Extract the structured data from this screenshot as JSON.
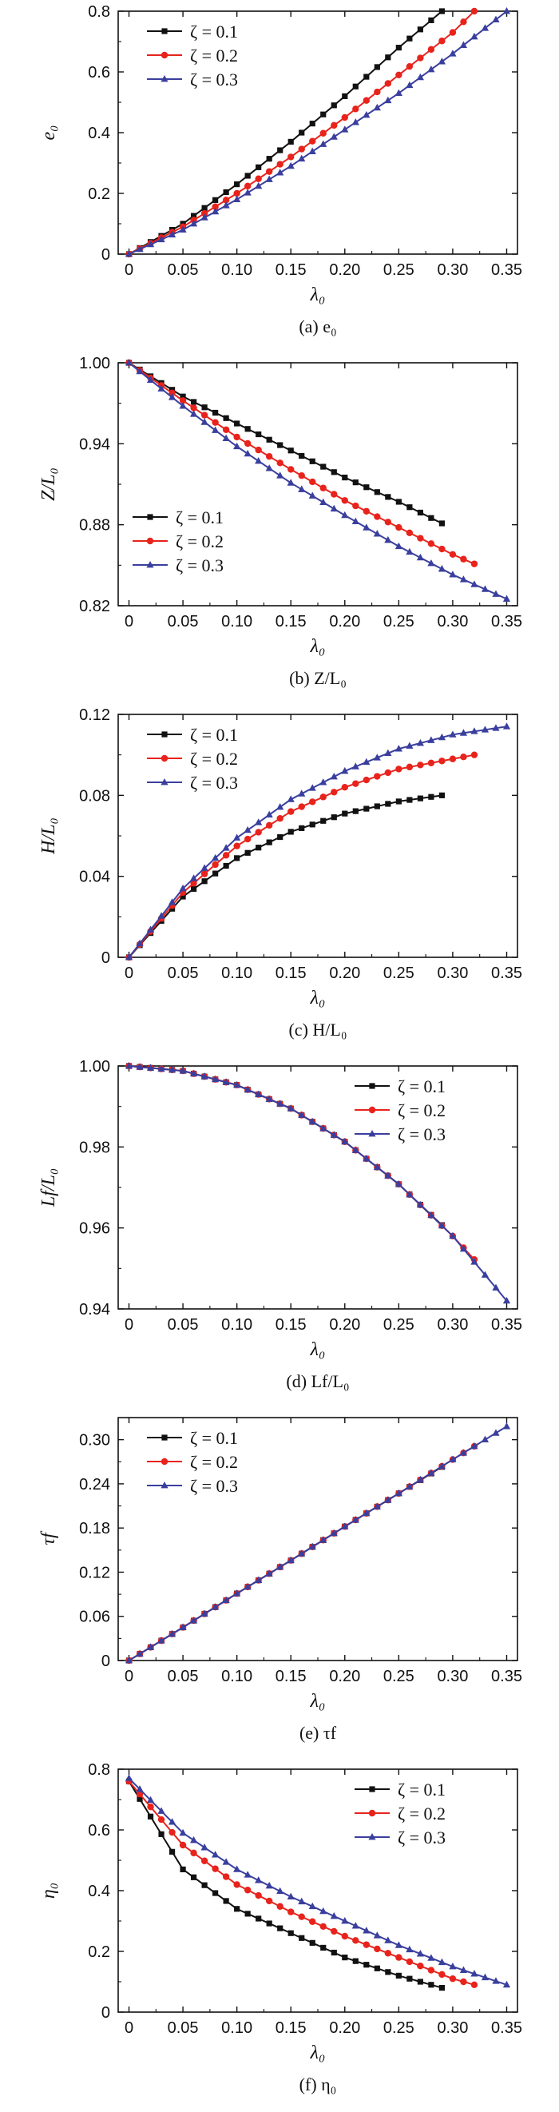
{
  "colors": {
    "s1": "#111111",
    "s2": "#e8231c",
    "s3": "#3a3f9e",
    "axis": "#111111"
  },
  "chart_data": [
    {
      "type": "line",
      "title": "",
      "caption": "(a) e₀",
      "ylabel": "e₀",
      "xlabel": "λ₀",
      "xlim": [
        -0.01,
        0.36
      ],
      "ylim": [
        0,
        0.8
      ],
      "xticks": [
        "0",
        "0.05",
        "0.10",
        "0.15",
        "0.20",
        "0.25",
        "0.30",
        "0.35"
      ],
      "xtick_values": [
        0,
        0.05,
        0.1,
        0.15,
        0.2,
        0.25,
        0.3,
        0.35
      ],
      "yticks": [
        "0",
        "0.2",
        "0.4",
        "0.6",
        "0.8"
      ],
      "ytick_values": [
        0,
        0.2,
        0.4,
        0.6,
        0.8
      ],
      "legend_position": "top-left",
      "series": [
        {
          "name": "ζ = 0.1",
          "marker": "square",
          "xmax": 0.29,
          "x": [
            0,
            0.05,
            0.1,
            0.15,
            0.2,
            0.25,
            0.29
          ],
          "y": [
            0,
            0.1,
            0.23,
            0.37,
            0.52,
            0.68,
            0.8
          ]
        },
        {
          "name": "ζ = 0.2",
          "marker": "circle",
          "xmax": 0.32,
          "x": [
            0,
            0.05,
            0.1,
            0.15,
            0.2,
            0.25,
            0.3,
            0.32
          ],
          "y": [
            0,
            0.09,
            0.2,
            0.32,
            0.45,
            0.59,
            0.73,
            0.8
          ]
        },
        {
          "name": "ζ = 0.3",
          "marker": "triangle",
          "xmax": 0.35,
          "x": [
            0,
            0.05,
            0.1,
            0.15,
            0.2,
            0.25,
            0.3,
            0.35
          ],
          "y": [
            0,
            0.08,
            0.18,
            0.29,
            0.41,
            0.53,
            0.66,
            0.8
          ]
        }
      ]
    },
    {
      "type": "line",
      "title": "",
      "caption": "(b) Z/L₀",
      "ylabel": "Z/L₀",
      "xlabel": "λ₀",
      "xlim": [
        -0.01,
        0.36
      ],
      "ylim": [
        0.82,
        1.0
      ],
      "xticks": [
        "0",
        "0.05",
        "0.10",
        "0.15",
        "0.20",
        "0.25",
        "0.30",
        "0.35"
      ],
      "xtick_values": [
        0,
        0.05,
        0.1,
        0.15,
        0.2,
        0.25,
        0.3,
        0.35
      ],
      "yticks": [
        "0.82",
        "0.88",
        "0.94",
        "1.00"
      ],
      "ytick_values": [
        0.82,
        0.88,
        0.94,
        1.0
      ],
      "legend_position": "bottom-left",
      "series": [
        {
          "name": "ζ = 0.1",
          "marker": "square",
          "xmax": 0.29,
          "x": [
            0,
            0.05,
            0.1,
            0.15,
            0.2,
            0.25,
            0.29
          ],
          "y": [
            1.0,
            0.975,
            0.955,
            0.935,
            0.915,
            0.897,
            0.881
          ]
        },
        {
          "name": "ζ = 0.2",
          "marker": "circle",
          "xmax": 0.32,
          "x": [
            0,
            0.05,
            0.1,
            0.15,
            0.2,
            0.25,
            0.3,
            0.32
          ],
          "y": [
            1.0,
            0.972,
            0.945,
            0.921,
            0.898,
            0.878,
            0.858,
            0.851
          ]
        },
        {
          "name": "ζ = 0.3",
          "marker": "triangle",
          "xmax": 0.35,
          "x": [
            0,
            0.05,
            0.1,
            0.15,
            0.2,
            0.25,
            0.3,
            0.35
          ],
          "y": [
            1.0,
            0.968,
            0.938,
            0.911,
            0.887,
            0.864,
            0.843,
            0.825
          ]
        }
      ]
    },
    {
      "type": "line",
      "title": "",
      "caption": "(c) H/L₀",
      "ylabel": "H/L₀",
      "xlabel": "λ₀",
      "xlim": [
        -0.01,
        0.36
      ],
      "ylim": [
        0,
        0.12
      ],
      "xticks": [
        "0",
        "0.05",
        "0.10",
        "0.15",
        "0.20",
        "0.25",
        "0.30",
        "0.35"
      ],
      "xtick_values": [
        0,
        0.05,
        0.1,
        0.15,
        0.2,
        0.25,
        0.3,
        0.35
      ],
      "yticks": [
        "0",
        "0.04",
        "0.08",
        "0.12"
      ],
      "ytick_values": [
        0,
        0.04,
        0.08,
        0.12
      ],
      "legend_position": "top-left",
      "series": [
        {
          "name": "ζ = 0.1",
          "marker": "square",
          "xmax": 0.29,
          "x": [
            0,
            0.05,
            0.1,
            0.15,
            0.2,
            0.25,
            0.29
          ],
          "y": [
            0,
            0.03,
            0.049,
            0.062,
            0.071,
            0.077,
            0.08
          ]
        },
        {
          "name": "ζ = 0.2",
          "marker": "circle",
          "xmax": 0.32,
          "x": [
            0,
            0.05,
            0.1,
            0.15,
            0.2,
            0.25,
            0.3,
            0.32
          ],
          "y": [
            0,
            0.032,
            0.055,
            0.072,
            0.084,
            0.093,
            0.098,
            0.1
          ]
        },
        {
          "name": "ζ = 0.3",
          "marker": "triangle",
          "xmax": 0.35,
          "x": [
            0,
            0.05,
            0.1,
            0.15,
            0.2,
            0.25,
            0.3,
            0.35
          ],
          "y": [
            0,
            0.034,
            0.059,
            0.078,
            0.092,
            0.103,
            0.11,
            0.114
          ]
        }
      ]
    },
    {
      "type": "line",
      "title": "",
      "caption": "(d) Lf/L₀",
      "ylabel": "Lf/L₀",
      "xlabel": "λ₀",
      "xlim": [
        -0.01,
        0.36
      ],
      "ylim": [
        0.94,
        1.0
      ],
      "xticks": [
        "0",
        "0.05",
        "0.10",
        "0.15",
        "0.20",
        "0.25",
        "0.30",
        "0.35"
      ],
      "xtick_values": [
        0,
        0.05,
        0.1,
        0.15,
        0.2,
        0.25,
        0.3,
        0.35
      ],
      "yticks": [
        "0.94",
        "0.96",
        "0.98",
        "1.00"
      ],
      "ytick_values": [
        0.94,
        0.96,
        0.98,
        1.0
      ],
      "legend_position": "top-right",
      "series": [
        {
          "name": "ζ = 0.1",
          "marker": "square",
          "xmax": 0.29,
          "x": [
            0,
            0.05,
            0.1,
            0.15,
            0.2,
            0.25,
            0.29
          ],
          "y": [
            1.0,
            0.9988,
            0.9953,
            0.9895,
            0.9813,
            0.9708,
            0.9607
          ]
        },
        {
          "name": "ζ = 0.2",
          "marker": "circle",
          "xmax": 0.32,
          "x": [
            0,
            0.05,
            0.1,
            0.15,
            0.2,
            0.25,
            0.3,
            0.32
          ],
          "y": [
            1.0,
            0.9988,
            0.9953,
            0.9895,
            0.9813,
            0.9708,
            0.958,
            0.9522
          ]
        },
        {
          "name": "ζ = 0.3",
          "marker": "triangle",
          "xmax": 0.35,
          "x": [
            0,
            0.05,
            0.1,
            0.15,
            0.2,
            0.25,
            0.3,
            0.35
          ],
          "y": [
            1.0,
            0.9988,
            0.9953,
            0.9895,
            0.9813,
            0.9708,
            0.958,
            0.942
          ]
        }
      ]
    },
    {
      "type": "line",
      "title": "",
      "caption": "(e) τf",
      "ylabel": "τf",
      "xlabel": "λ₀",
      "xlim": [
        -0.01,
        0.36
      ],
      "ylim": [
        0,
        0.33
      ],
      "xticks": [
        "0",
        "0.05",
        "0.10",
        "0.15",
        "0.20",
        "0.25",
        "0.30",
        "0.35"
      ],
      "xtick_values": [
        0,
        0.05,
        0.1,
        0.15,
        0.2,
        0.25,
        0.3,
        0.35
      ],
      "yticks": [
        "0",
        "0.06",
        "0.12",
        "0.18",
        "0.24",
        "0.30"
      ],
      "ytick_values": [
        0,
        0.06,
        0.12,
        0.18,
        0.24,
        0.3
      ],
      "legend_position": "top-left",
      "series": [
        {
          "name": "ζ = 0.1",
          "marker": "square",
          "xmax": 0.29,
          "x": [
            0,
            0.05,
            0.1,
            0.15,
            0.2,
            0.25,
            0.29
          ],
          "y": [
            0,
            0.045,
            0.091,
            0.136,
            0.182,
            0.227,
            0.263
          ]
        },
        {
          "name": "ζ = 0.2",
          "marker": "circle",
          "xmax": 0.32,
          "x": [
            0,
            0.05,
            0.1,
            0.15,
            0.2,
            0.25,
            0.3,
            0.32
          ],
          "y": [
            0,
            0.045,
            0.091,
            0.136,
            0.182,
            0.227,
            0.273,
            0.291
          ]
        },
        {
          "name": "ζ = 0.3",
          "marker": "triangle",
          "xmax": 0.35,
          "x": [
            0,
            0.05,
            0.1,
            0.15,
            0.2,
            0.25,
            0.3,
            0.35
          ],
          "y": [
            0,
            0.045,
            0.091,
            0.136,
            0.182,
            0.227,
            0.273,
            0.318
          ]
        }
      ]
    },
    {
      "type": "line",
      "title": "",
      "caption": "(f) η₀",
      "ylabel": "η₀",
      "xlabel": "λ₀",
      "xlim": [
        -0.01,
        0.36
      ],
      "ylim": [
        0,
        0.8
      ],
      "xticks": [
        "0",
        "0.05",
        "0.10",
        "0.15",
        "0.20",
        "0.25",
        "0.30",
        "0.35"
      ],
      "xtick_values": [
        0,
        0.05,
        0.1,
        0.15,
        0.2,
        0.25,
        0.3,
        0.35
      ],
      "yticks": [
        "0",
        "0.2",
        "0.4",
        "0.6",
        "0.8"
      ],
      "ytick_values": [
        0,
        0.2,
        0.4,
        0.6,
        0.8
      ],
      "legend_position": "top-right",
      "series": [
        {
          "name": "ζ = 0.1",
          "marker": "square",
          "xmax": 0.29,
          "x": [
            0,
            0.05,
            0.1,
            0.15,
            0.2,
            0.25,
            0.29
          ],
          "y": [
            0.76,
            0.47,
            0.34,
            0.26,
            0.18,
            0.12,
            0.08
          ]
        },
        {
          "name": "ζ = 0.2",
          "marker": "circle",
          "xmax": 0.32,
          "x": [
            0,
            0.05,
            0.1,
            0.15,
            0.2,
            0.25,
            0.3,
            0.32
          ],
          "y": [
            0.76,
            0.55,
            0.42,
            0.33,
            0.25,
            0.18,
            0.11,
            0.09
          ]
        },
        {
          "name": "ζ = 0.3",
          "marker": "triangle",
          "xmax": 0.35,
          "x": [
            0,
            0.05,
            0.1,
            0.15,
            0.2,
            0.25,
            0.3,
            0.35
          ],
          "y": [
            0.77,
            0.59,
            0.47,
            0.38,
            0.3,
            0.22,
            0.15,
            0.09
          ]
        }
      ]
    }
  ]
}
